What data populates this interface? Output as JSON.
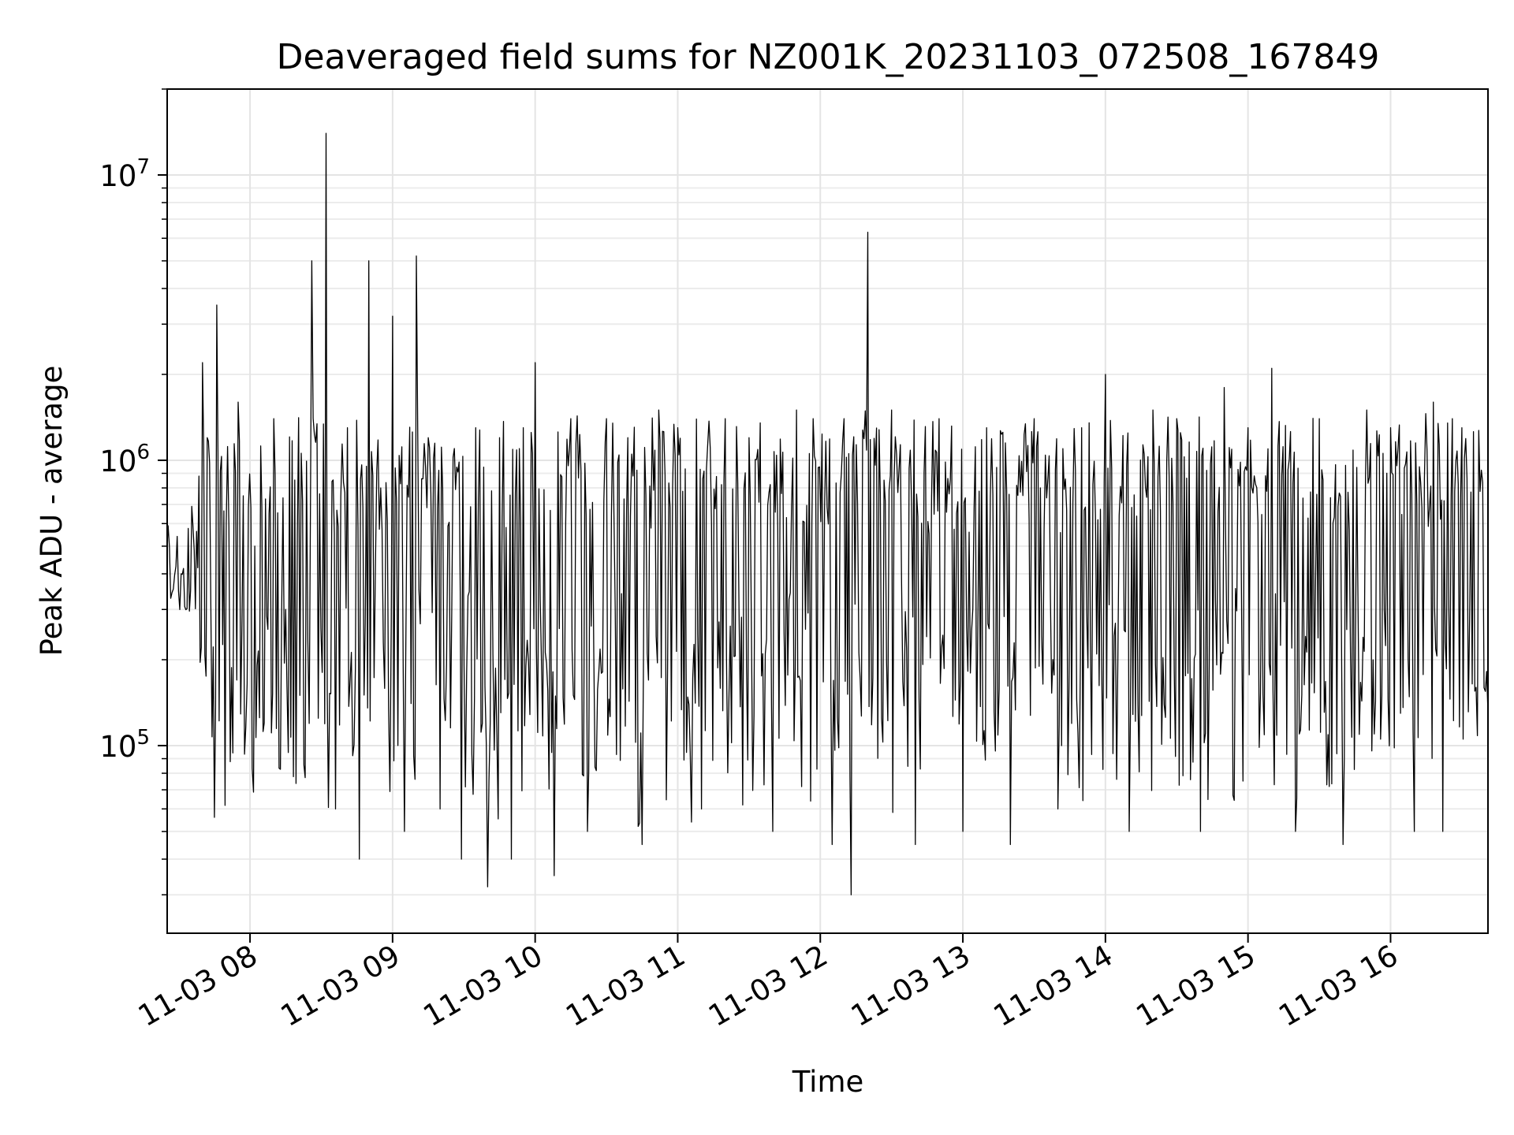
{
  "chart_data": {
    "type": "line",
    "title": "Deaveraged field sums for NZ001K_20231103_072508_167849",
    "xlabel": "Time",
    "ylabel": "Peak ADU - average",
    "yscale": "log",
    "xlim": [
      "2023-11-03 07:25:08",
      "2023-11-03 16:41:00"
    ],
    "ylim": [
      22000,
      20000000
    ],
    "grid": true,
    "grid_minor": true,
    "line_color": "#000000",
    "x_ticks": [
      {
        "value": "2023-11-03 08:00",
        "label": "11-03 08"
      },
      {
        "value": "2023-11-03 09:00",
        "label": "11-03 09"
      },
      {
        "value": "2023-11-03 10:00",
        "label": "11-03 10"
      },
      {
        "value": "2023-11-03 11:00",
        "label": "11-03 11"
      },
      {
        "value": "2023-11-03 12:00",
        "label": "11-03 12"
      },
      {
        "value": "2023-11-03 13:00",
        "label": "11-03 13"
      },
      {
        "value": "2023-11-03 14:00",
        "label": "11-03 14"
      },
      {
        "value": "2023-11-03 15:00",
        "label": "11-03 15"
      },
      {
        "value": "2023-11-03 16:00",
        "label": "11-03 16"
      }
    ],
    "y_ticks": [
      {
        "value": 100000,
        "base": "10",
        "exp": "5"
      },
      {
        "value": 1000000,
        "base": "10",
        "exp": "6"
      },
      {
        "value": 10000000,
        "base": "10",
        "exp": "7"
      }
    ],
    "series": [
      {
        "x": [
          "2023-11-03 07:25",
          "2023-11-03 07:31",
          "2023-11-03 07:35",
          "2023-11-03 07:38",
          "2023-11-03 07:40",
          "2023-11-03 07:42",
          "2023-11-03 07:46",
          "2023-11-03 07:50",
          "2023-11-03 07:55",
          "2023-11-03 08:02",
          "2023-11-03 08:06",
          "2023-11-03 08:10",
          "2023-11-03 08:15",
          "2023-11-03 08:21",
          "2023-11-03 08:26",
          "2023-11-03 08:32",
          "2023-11-03 08:36",
          "2023-11-03 08:41",
          "2023-11-03 08:46",
          "2023-11-03 08:50",
          "2023-11-03 08:55",
          "2023-11-03 09:00",
          "2023-11-03 09:05",
          "2023-11-03 09:10",
          "2023-11-03 09:15",
          "2023-11-03 09:20",
          "2023-11-03 09:26",
          "2023-11-03 09:29",
          "2023-11-03 09:35",
          "2023-11-03 09:40",
          "2023-11-03 09:45",
          "2023-11-03 09:50",
          "2023-11-03 09:55",
          "2023-11-03 10:00",
          "2023-11-03 10:08",
          "2023-11-03 10:15",
          "2023-11-03 10:22",
          "2023-11-03 10:30",
          "2023-11-03 10:39",
          "2023-11-03 10:45",
          "2023-11-03 10:52",
          "2023-11-03 11:00",
          "2023-11-03 11:10",
          "2023-11-03 11:20",
          "2023-11-03 11:30",
          "2023-11-03 11:40",
          "2023-11-03 11:50",
          "2023-11-03 11:57",
          "2023-11-03 12:05",
          "2023-11-03 12:10",
          "2023-11-03 12:13",
          "2023-11-03 12:20",
          "2023-11-03 12:30",
          "2023-11-03 12:40",
          "2023-11-03 12:50",
          "2023-11-03 13:00",
          "2023-11-03 13:10",
          "2023-11-03 13:20",
          "2023-11-03 13:30",
          "2023-11-03 13:40",
          "2023-11-03 13:50",
          "2023-11-03 14:00",
          "2023-11-03 14:10",
          "2023-11-03 14:20",
          "2023-11-03 14:30",
          "2023-11-03 14:40",
          "2023-11-03 14:50",
          "2023-11-03 15:00",
          "2023-11-03 15:10",
          "2023-11-03 15:20",
          "2023-11-03 15:30",
          "2023-11-03 15:40",
          "2023-11-03 15:50",
          "2023-11-03 16:00",
          "2023-11-03 16:10",
          "2023-11-03 16:18",
          "2023-11-03 16:22",
          "2023-11-03 16:26",
          "2023-11-03 16:30",
          "2023-11-03 16:36",
          "2023-11-03 16:41"
        ],
        "y": [
          480000,
          400000,
          350000,
          420000,
          2200000,
          1200000,
          3500000,
          600000,
          1600000,
          500000,
          120000,
          1400000,
          300000,
          150000,
          5000000,
          14000000,
          60000,
          1300000,
          40000,
          5000000,
          800000,
          3200000,
          50000,
          5200000,
          1200000,
          60000,
          1100000,
          40000,
          1300000,
          32000,
          1200000,
          40000,
          1300000,
          2200000,
          35000,
          1400000,
          50000,
          1400000,
          1200000,
          45000,
          1500000,
          1300000,
          60000,
          1400000,
          1200000,
          50000,
          1500000,
          1400000,
          45000,
          1400000,
          30000,
          6300000,
          1500000,
          45000,
          1400000,
          50000,
          1300000,
          45000,
          1400000,
          60000,
          1300000,
          2000000,
          50000,
          1500000,
          1400000,
          50000,
          1800000,
          1300000,
          2100000,
          50000,
          1400000,
          45000,
          1500000,
          1300000,
          50000,
          1600000,
          50000,
          1400000,
          1300000,
          160000,
          130000
        ]
      }
    ]
  }
}
